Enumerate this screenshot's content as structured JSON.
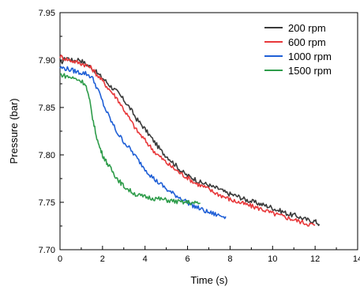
{
  "chart_data": {
    "type": "line",
    "xlabel": "Time (s)",
    "ylabel": "Pressure (bar)",
    "xlim": [
      0,
      14
    ],
    "ylim": [
      7.7,
      7.95
    ],
    "xticks": [
      "0",
      "2",
      "4",
      "6",
      "8",
      "10",
      "12",
      "14"
    ],
    "yticks": [
      "7.70",
      "7.75",
      "7.80",
      "7.85",
      "7.90",
      "7.95"
    ],
    "legend_position": "top-right",
    "grid": false,
    "series": [
      {
        "name": "200 rpm",
        "color": "#3a3a3a",
        "x": [
          0,
          0.3,
          0.6,
          0.9,
          1.2,
          1.5,
          1.8,
          2.1,
          2.4,
          2.7,
          3.0,
          3.3,
          3.6,
          3.9,
          4.2,
          4.5,
          4.8,
          5.1,
          5.4,
          5.7,
          6.0,
          6.3,
          6.6,
          6.9,
          7.2,
          7.5,
          7.8,
          8.1,
          8.4,
          8.7,
          9.0,
          9.3,
          9.6,
          9.9,
          10.2,
          10.5,
          10.8,
          11.1,
          11.4,
          11.7,
          12.0,
          12.2
        ],
        "y": [
          7.896,
          7.903,
          7.899,
          7.901,
          7.896,
          7.892,
          7.885,
          7.879,
          7.872,
          7.866,
          7.858,
          7.849,
          7.838,
          7.83,
          7.821,
          7.812,
          7.803,
          7.797,
          7.79,
          7.783,
          7.778,
          7.775,
          7.771,
          7.769,
          7.766,
          7.764,
          7.76,
          7.758,
          7.756,
          7.753,
          7.751,
          7.749,
          7.747,
          7.745,
          7.742,
          7.74,
          7.737,
          7.736,
          7.733,
          7.731,
          7.73,
          7.727
        ]
      },
      {
        "name": "600 rpm",
        "color": "#e8383a",
        "x": [
          0,
          0.3,
          0.6,
          0.9,
          1.2,
          1.5,
          1.8,
          2.1,
          2.4,
          2.7,
          3.0,
          3.3,
          3.6,
          3.9,
          4.2,
          4.5,
          4.8,
          5.1,
          5.4,
          5.7,
          6.0,
          6.3,
          6.6,
          6.9,
          7.2,
          7.5,
          7.8,
          8.1,
          8.4,
          8.7,
          9.0,
          9.3,
          9.6,
          9.9,
          10.2,
          10.5,
          10.8,
          11.1,
          11.4,
          11.7,
          12.0
        ],
        "y": [
          7.904,
          7.901,
          7.899,
          7.897,
          7.895,
          7.891,
          7.883,
          7.875,
          7.867,
          7.859,
          7.848,
          7.837,
          7.826,
          7.818,
          7.81,
          7.802,
          7.796,
          7.79,
          7.785,
          7.78,
          7.776,
          7.771,
          7.768,
          7.765,
          7.761,
          7.758,
          7.755,
          7.752,
          7.75,
          7.748,
          7.746,
          7.744,
          7.742,
          7.739,
          7.737,
          7.735,
          7.733,
          7.731,
          7.729,
          7.727,
          7.726
        ]
      },
      {
        "name": "1000 rpm",
        "color": "#1f5fd6",
        "x": [
          0,
          0.3,
          0.6,
          0.9,
          1.2,
          1.5,
          1.8,
          2.1,
          2.4,
          2.7,
          3.0,
          3.3,
          3.6,
          3.9,
          4.2,
          4.5,
          4.8,
          5.1,
          5.4,
          5.7,
          6.0,
          6.3,
          6.6,
          6.9,
          7.2,
          7.5,
          7.8
        ],
        "y": [
          7.892,
          7.891,
          7.889,
          7.887,
          7.886,
          7.882,
          7.868,
          7.85,
          7.836,
          7.823,
          7.814,
          7.806,
          7.797,
          7.788,
          7.78,
          7.773,
          7.768,
          7.762,
          7.758,
          7.754,
          7.75,
          7.746,
          7.743,
          7.74,
          7.738,
          7.736,
          7.735
        ]
      },
      {
        "name": "1500 rpm",
        "color": "#2e9c4a",
        "x": [
          0,
          0.3,
          0.6,
          0.9,
          1.2,
          1.4,
          1.6,
          1.8,
          2.0,
          2.2,
          2.4,
          2.6,
          2.8,
          3.0,
          3.3,
          3.6,
          3.9,
          4.2,
          4.5,
          4.8,
          5.1,
          5.4,
          5.7,
          6.0,
          6.3,
          6.6
        ],
        "y": [
          7.885,
          7.883,
          7.881,
          7.879,
          7.875,
          7.856,
          7.831,
          7.812,
          7.8,
          7.792,
          7.785,
          7.778,
          7.772,
          7.767,
          7.762,
          7.758,
          7.756,
          7.755,
          7.754,
          7.753,
          7.752,
          7.751,
          7.75,
          7.75,
          7.749,
          7.749
        ]
      }
    ]
  }
}
